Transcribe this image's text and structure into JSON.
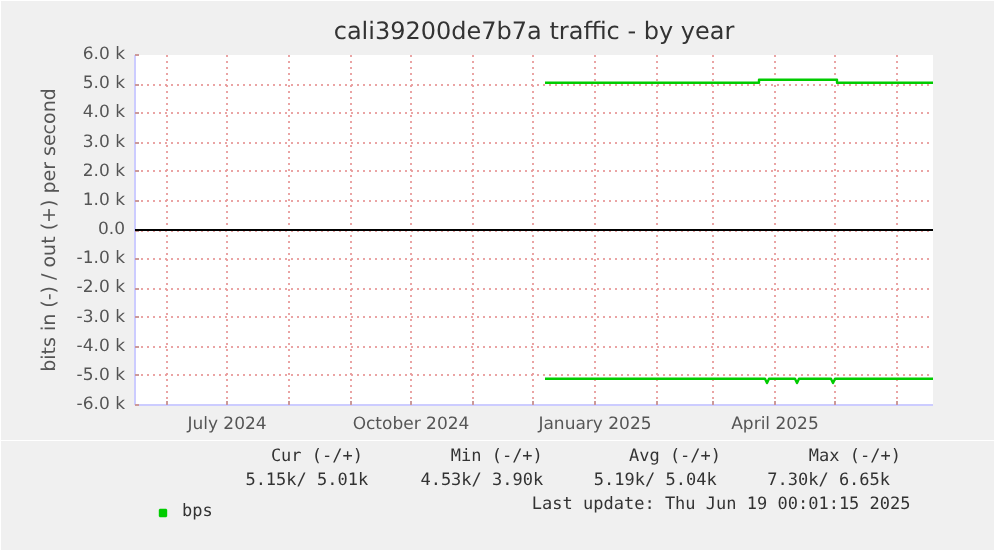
{
  "chart_data": {
    "type": "line",
    "title": "cali39200de7b7a traffic - by year",
    "ylabel": "bits in (-) / out (+) per second",
    "xlim": [
      "2024-05-16",
      "2025-06-19"
    ],
    "xticks": [
      {
        "value": "2024-06-01",
        "label": null
      },
      {
        "value": "2024-07-01",
        "label": "July 2024"
      },
      {
        "value": "2024-08-01",
        "label": null
      },
      {
        "value": "2024-09-01",
        "label": null
      },
      {
        "value": "2024-10-01",
        "label": "October 2024"
      },
      {
        "value": "2024-11-01",
        "label": null
      },
      {
        "value": "2024-12-01",
        "label": null
      },
      {
        "value": "2025-01-01",
        "label": "January 2025"
      },
      {
        "value": "2025-02-01",
        "label": null
      },
      {
        "value": "2025-03-01",
        "label": null
      },
      {
        "value": "2025-04-01",
        "label": "April 2025"
      },
      {
        "value": "2025-05-01",
        "label": null
      },
      {
        "value": "2025-06-01",
        "label": null
      }
    ],
    "ylim": [
      -6000,
      6000
    ],
    "yticks": [
      {
        "value": -6000,
        "label": "-6.0 k"
      },
      {
        "value": -5000,
        "label": "-5.0 k"
      },
      {
        "value": -4000,
        "label": "-4.0 k"
      },
      {
        "value": -3000,
        "label": "-3.0 k"
      },
      {
        "value": -2000,
        "label": "-2.0 k"
      },
      {
        "value": -1000,
        "label": "-1.0 k"
      },
      {
        "value": 0,
        "label": "0.0"
      },
      {
        "value": 1000,
        "label": "1.0 k"
      },
      {
        "value": 2000,
        "label": "2.0 k"
      },
      {
        "value": 3000,
        "label": "3.0 k"
      },
      {
        "value": 4000,
        "label": "4.0 k"
      },
      {
        "value": 5000,
        "label": "5.0 k"
      },
      {
        "value": 6000,
        "label": "6.0 k"
      }
    ],
    "grid": true,
    "legend": "bottom",
    "marker": "none",
    "line_style": "solid",
    "ref_lines": [
      {
        "axis": "y",
        "value": 0,
        "color": "#000000"
      }
    ],
    "series": [
      {
        "name": "bps",
        "color": "#00cc00",
        "x": [
          "2024-12-07",
          "2025-03-24",
          "2025-03-24",
          "2025-05-02",
          "2025-05-02",
          "2025-06-19"
        ],
        "values": [
          5050,
          5050,
          5150,
          5150,
          5050,
          5050
        ]
      },
      {
        "color": "#00cc00",
        "x": [
          "2024-12-07",
          "2025-03-27",
          "2025-03-28",
          "2025-03-29",
          "2025-04-11",
          "2025-04-12",
          "2025-04-13",
          "2025-04-29",
          "2025-04-30",
          "2025-05-01",
          "2025-06-19"
        ],
        "values": [
          -5100,
          -5100,
          -5250,
          -5100,
          -5100,
          -5250,
          -5100,
          -5100,
          -5250,
          -5100,
          -5100
        ]
      }
    ],
    "annotations": [
      "Cur (-/+)",
      "Min (-/+)",
      "Avg (-/+)",
      "Max (-/+)",
      "5.15k/   5.01k",
      "4.53k/   3.90k",
      "5.19k/   5.04k",
      "7.30k/   6.65k",
      "Last update: Thu Jun 19 00:01:15 2025"
    ]
  }
}
